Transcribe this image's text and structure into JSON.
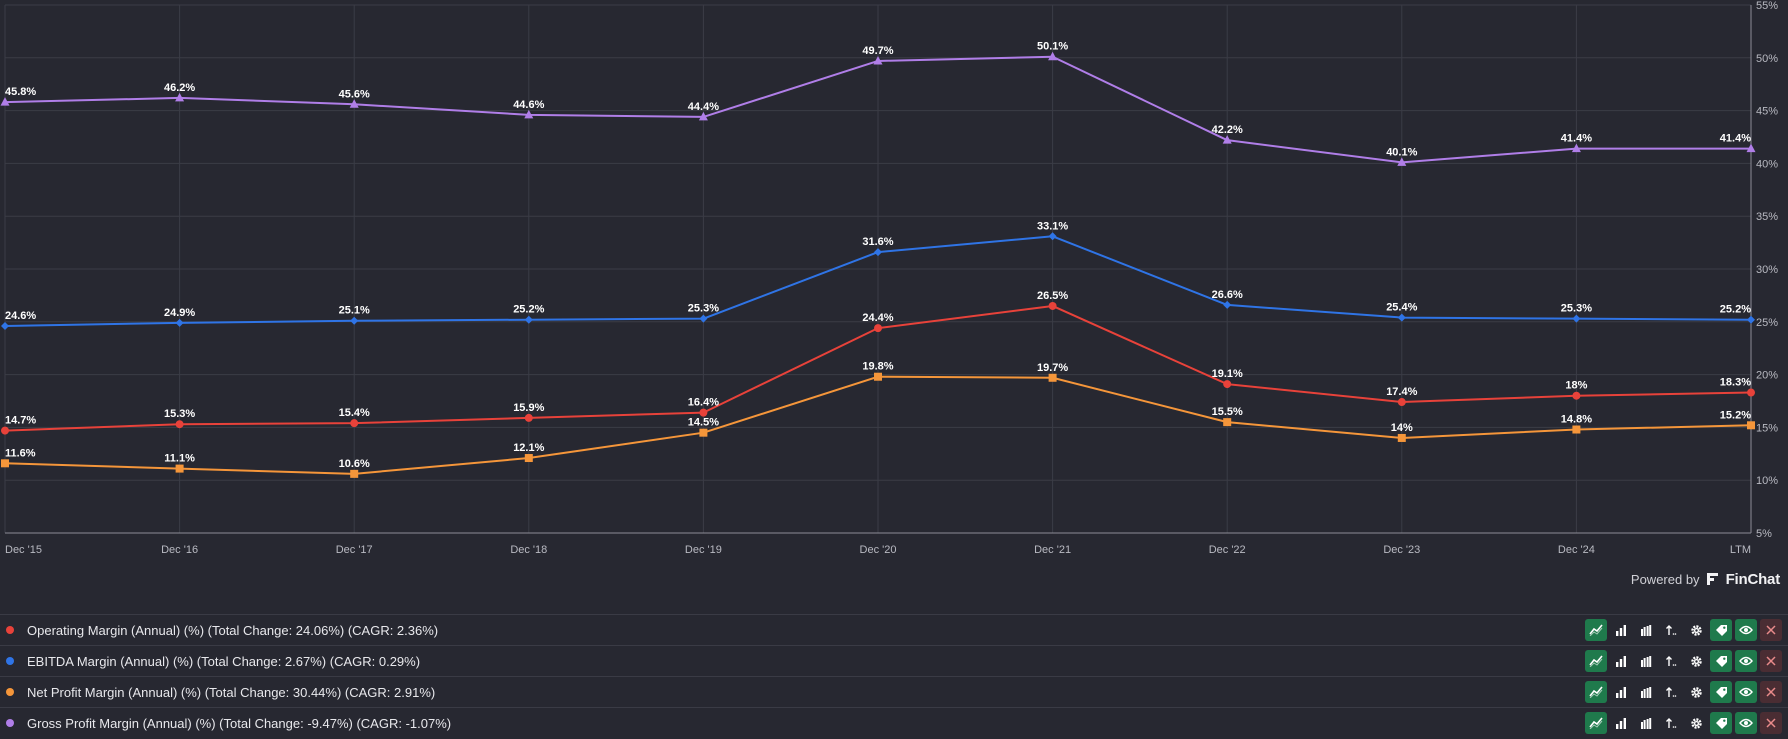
{
  "chart_data": {
    "type": "line",
    "categories": [
      "Dec '15",
      "Dec '16",
      "Dec '17",
      "Dec '18",
      "Dec '19",
      "Dec '20",
      "Dec '21",
      "Dec '22",
      "Dec '23",
      "Dec '24",
      "LTM"
    ],
    "ylim": [
      5,
      55
    ],
    "y_ticks": [
      "55%",
      "50%",
      "45%",
      "40%",
      "35%",
      "30%",
      "25%",
      "20%",
      "15%",
      "10%",
      "5%"
    ],
    "grid": true,
    "legend_position": "bottom",
    "series": [
      {
        "key": "operating",
        "color": "#e8423a",
        "marker": "circle",
        "values": [
          14.7,
          15.3,
          15.4,
          15.9,
          16.4,
          24.4,
          26.5,
          19.1,
          17.4,
          18,
          18.3
        ],
        "labels": [
          "14.7%",
          "15.3%",
          "15.4%",
          "15.9%",
          "16.4%",
          "24.4%",
          "26.5%",
          "19.1%",
          "17.4%",
          "18%",
          "18.3%"
        ]
      },
      {
        "key": "ebitda",
        "color": "#2f74e6",
        "marker": "diamond",
        "values": [
          24.6,
          24.9,
          25.1,
          25.2,
          25.3,
          31.6,
          33.1,
          26.6,
          25.4,
          25.3,
          25.2
        ],
        "labels": [
          "24.6%",
          "24.9%",
          "25.1%",
          "25.2%",
          "25.3%",
          "31.6%",
          "33.1%",
          "26.6%",
          "25.4%",
          "25.3%",
          "25.2%"
        ]
      },
      {
        "key": "net",
        "color": "#f5963a",
        "marker": "square",
        "values": [
          11.6,
          11.1,
          10.6,
          12.1,
          14.5,
          19.8,
          19.7,
          15.5,
          14,
          14.8,
          15.2
        ],
        "labels": [
          "11.6%",
          "11.1%",
          "10.6%",
          "12.1%",
          "14.5%",
          "19.8%",
          "19.7%",
          "15.5%",
          "14%",
          "14.8%",
          "15.2%"
        ]
      },
      {
        "key": "gross",
        "color": "#b07ee8",
        "marker": "triangle",
        "values": [
          45.8,
          46.2,
          45.6,
          44.6,
          44.4,
          49.7,
          50.1,
          42.2,
          40.1,
          41.4,
          41.4
        ],
        "labels": [
          "45.8%",
          "46.2%",
          "45.6%",
          "44.6%",
          "44.4%",
          "49.7%",
          "50.1%",
          "42.2%",
          "40.1%",
          "41.4%",
          "41.4%"
        ]
      }
    ]
  },
  "powered": {
    "text": "Powered by",
    "brand": "FinChat"
  },
  "legend": [
    {
      "label": "Operating Margin (Annual) (%) (Total Change: 24.06%) (CAGR: 2.36%)",
      "color": "#e8423a"
    },
    {
      "label": "EBITDA Margin (Annual) (%) (Total Change: 2.67%) (CAGR: 0.29%)",
      "color": "#2f74e6"
    },
    {
      "label": "Net Profit Margin (Annual) (%) (Total Change: 30.44%) (CAGR: 2.91%)",
      "color": "#f5963a"
    },
    {
      "label": "Gross Profit Margin (Annual) (%) (Total Change: -9.47%) (CAGR: -1.07%)",
      "color": "#b07ee8"
    }
  ],
  "tool_icons": [
    "line-chart-icon",
    "bar-chart-icon",
    "grouped-bar-icon",
    "sort-icon",
    "gear-icon",
    "tag-icon",
    "eye-icon",
    "close-icon"
  ]
}
